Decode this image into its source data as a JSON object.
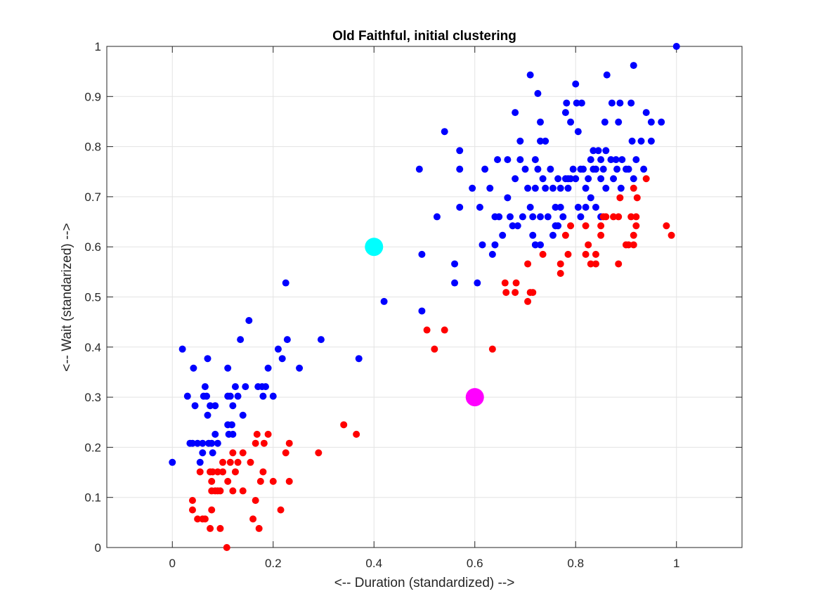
{
  "chart_data": {
    "type": "scatter",
    "title": "Old Faithful, initial clustering",
    "xlabel": "<-- Duration (standardized) -->",
    "ylabel": "<-- Wait (standarized) -->",
    "xlim": [
      -0.13,
      1.13
    ],
    "ylim": [
      0,
      1
    ],
    "xticks": [
      0,
      0.2,
      0.4,
      0.6,
      0.8,
      1
    ],
    "yticks": [
      0,
      0.1,
      0.2,
      0.3,
      0.4,
      0.5,
      0.6,
      0.7,
      0.8,
      0.9,
      1
    ],
    "xtick_labels": [
      "0",
      "0.2",
      "0.4",
      "0.6",
      "0.8",
      "1"
    ],
    "ytick_labels": [
      "0",
      "0.1",
      "0.2",
      "0.3",
      "0.4",
      "0.5",
      "0.6",
      "0.7",
      "0.8",
      "0.9",
      "1"
    ],
    "grid": true,
    "series": [
      {
        "color": "#0000ff",
        "points": [
          [
            0.0,
            0.17
          ],
          [
            0.02,
            0.396
          ],
          [
            0.03,
            0.302
          ],
          [
            0.035,
            0.208
          ],
          [
            0.04,
            0.208
          ],
          [
            0.042,
            0.358
          ],
          [
            0.045,
            0.283
          ],
          [
            0.05,
            0.208
          ],
          [
            0.055,
            0.17
          ],
          [
            0.06,
            0.189
          ],
          [
            0.06,
            0.208
          ],
          [
            0.062,
            0.302
          ],
          [
            0.065,
            0.321
          ],
          [
            0.068,
            0.302
          ],
          [
            0.07,
            0.377
          ],
          [
            0.07,
            0.264
          ],
          [
            0.072,
            0.208
          ],
          [
            0.075,
            0.283
          ],
          [
            0.078,
            0.208
          ],
          [
            0.08,
            0.189
          ],
          [
            0.085,
            0.283
          ],
          [
            0.085,
            0.226
          ],
          [
            0.09,
            0.208
          ],
          [
            0.11,
            0.245
          ],
          [
            0.11,
            0.302
          ],
          [
            0.11,
            0.358
          ],
          [
            0.112,
            0.226
          ],
          [
            0.115,
            0.302
          ],
          [
            0.118,
            0.245
          ],
          [
            0.12,
            0.226
          ],
          [
            0.12,
            0.283
          ],
          [
            0.125,
            0.321
          ],
          [
            0.13,
            0.302
          ],
          [
            0.135,
            0.415
          ],
          [
            0.14,
            0.264
          ],
          [
            0.145,
            0.321
          ],
          [
            0.152,
            0.453
          ],
          [
            0.17,
            0.321
          ],
          [
            0.178,
            0.321
          ],
          [
            0.18,
            0.302
          ],
          [
            0.185,
            0.321
          ],
          [
            0.19,
            0.358
          ],
          [
            0.2,
            0.302
          ],
          [
            0.21,
            0.396
          ],
          [
            0.218,
            0.377
          ],
          [
            0.225,
            0.528
          ],
          [
            0.228,
            0.415
          ],
          [
            0.252,
            0.358
          ],
          [
            0.295,
            0.415
          ],
          [
            0.37,
            0.377
          ],
          [
            0.42,
            0.491
          ],
          [
            0.49,
            0.755
          ],
          [
            0.495,
            0.585
          ],
          [
            0.495,
            0.472
          ],
          [
            0.525,
            0.66
          ],
          [
            0.54,
            0.83
          ],
          [
            0.56,
            0.566
          ],
          [
            0.56,
            0.528
          ],
          [
            0.57,
            0.792
          ],
          [
            0.57,
            0.755
          ],
          [
            0.57,
            0.679
          ],
          [
            0.595,
            0.717
          ],
          [
            0.605,
            0.528
          ],
          [
            0.61,
            0.679
          ],
          [
            0.615,
            0.604
          ],
          [
            0.62,
            0.755
          ],
          [
            0.63,
            0.717
          ],
          [
            0.635,
            0.585
          ],
          [
            0.64,
            0.604
          ],
          [
            0.64,
            0.66
          ],
          [
            0.645,
            0.774
          ],
          [
            0.648,
            0.66
          ],
          [
            0.655,
            0.623
          ],
          [
            0.665,
            0.774
          ],
          [
            0.665,
            0.698
          ],
          [
            0.67,
            0.66
          ],
          [
            0.675,
            0.642
          ],
          [
            0.68,
            0.868
          ],
          [
            0.68,
            0.736
          ],
          [
            0.685,
            0.642
          ],
          [
            0.69,
            0.811
          ],
          [
            0.69,
            0.774
          ],
          [
            0.695,
            0.66
          ],
          [
            0.7,
            0.755
          ],
          [
            0.705,
            0.717
          ],
          [
            0.71,
            0.943
          ],
          [
            0.71,
            0.679
          ],
          [
            0.715,
            0.66
          ],
          [
            0.715,
            0.623
          ],
          [
            0.72,
            0.717
          ],
          [
            0.72,
            0.604
          ],
          [
            0.72,
            0.774
          ],
          [
            0.725,
            0.906
          ],
          [
            0.725,
            0.755
          ],
          [
            0.73,
            0.849
          ],
          [
            0.73,
            0.811
          ],
          [
            0.73,
            0.66
          ],
          [
            0.73,
            0.604
          ],
          [
            0.735,
            0.736
          ],
          [
            0.74,
            0.811
          ],
          [
            0.74,
            0.717
          ],
          [
            0.745,
            0.66
          ],
          [
            0.75,
            0.755
          ],
          [
            0.755,
            0.717
          ],
          [
            0.755,
            0.623
          ],
          [
            0.76,
            0.679
          ],
          [
            0.76,
            0.642
          ],
          [
            0.765,
            0.736
          ],
          [
            0.765,
            0.642
          ],
          [
            0.77,
            0.717
          ],
          [
            0.77,
            0.679
          ],
          [
            0.775,
            0.66
          ],
          [
            0.78,
            0.868
          ],
          [
            0.78,
            0.736
          ],
          [
            0.782,
            0.887
          ],
          [
            0.785,
            0.717
          ],
          [
            0.785,
            0.736
          ],
          [
            0.79,
            0.849
          ],
          [
            0.79,
            0.736
          ],
          [
            0.795,
            0.755
          ],
          [
            0.8,
            0.925
          ],
          [
            0.8,
            0.736
          ],
          [
            0.802,
            0.887
          ],
          [
            0.805,
            0.83
          ],
          [
            0.805,
            0.679
          ],
          [
            0.81,
            0.755
          ],
          [
            0.81,
            0.66
          ],
          [
            0.812,
            0.887
          ],
          [
            0.815,
            0.755
          ],
          [
            0.82,
            0.717
          ],
          [
            0.82,
            0.679
          ],
          [
            0.825,
            0.736
          ],
          [
            0.83,
            0.774
          ],
          [
            0.83,
            0.698
          ],
          [
            0.835,
            0.755
          ],
          [
            0.835,
            0.792
          ],
          [
            0.84,
            0.755
          ],
          [
            0.84,
            0.679
          ],
          [
            0.845,
            0.792
          ],
          [
            0.85,
            0.774
          ],
          [
            0.85,
            0.736
          ],
          [
            0.85,
            0.66
          ],
          [
            0.855,
            0.755
          ],
          [
            0.858,
            0.849
          ],
          [
            0.86,
            0.792
          ],
          [
            0.86,
            0.717
          ],
          [
            0.862,
            0.943
          ],
          [
            0.87,
            0.774
          ],
          [
            0.872,
            0.887
          ],
          [
            0.875,
            0.736
          ],
          [
            0.88,
            0.774
          ],
          [
            0.882,
            0.755
          ],
          [
            0.885,
            0.849
          ],
          [
            0.888,
            0.887
          ],
          [
            0.89,
            0.717
          ],
          [
            0.892,
            0.774
          ],
          [
            0.9,
            0.755
          ],
          [
            0.905,
            0.755
          ],
          [
            0.91,
            0.887
          ],
          [
            0.912,
            0.811
          ],
          [
            0.915,
            0.736
          ],
          [
            0.915,
            0.962
          ],
          [
            0.92,
            0.774
          ],
          [
            0.93,
            0.811
          ],
          [
            0.935,
            0.755
          ],
          [
            0.94,
            0.868
          ],
          [
            0.95,
            0.849
          ],
          [
            0.95,
            0.811
          ],
          [
            0.97,
            0.849
          ],
          [
            1.0,
            1.0
          ]
        ]
      },
      {
        "color": "#ff0000",
        "points": [
          [
            0.04,
            0.094
          ],
          [
            0.04,
            0.075
          ],
          [
            0.05,
            0.057
          ],
          [
            0.055,
            0.151
          ],
          [
            0.06,
            0.057
          ],
          [
            0.065,
            0.057
          ],
          [
            0.075,
            0.038
          ],
          [
            0.075,
            0.151
          ],
          [
            0.078,
            0.132
          ],
          [
            0.078,
            0.113
          ],
          [
            0.078,
            0.075
          ],
          [
            0.08,
            0.151
          ],
          [
            0.085,
            0.113
          ],
          [
            0.09,
            0.113
          ],
          [
            0.09,
            0.151
          ],
          [
            0.095,
            0.038
          ],
          [
            0.095,
            0.113
          ],
          [
            0.1,
            0.17
          ],
          [
            0.1,
            0.151
          ],
          [
            0.108,
            0.0
          ],
          [
            0.11,
            0.132
          ],
          [
            0.115,
            0.17
          ],
          [
            0.12,
            0.189
          ],
          [
            0.12,
            0.113
          ],
          [
            0.125,
            0.151
          ],
          [
            0.13,
            0.17
          ],
          [
            0.14,
            0.113
          ],
          [
            0.14,
            0.189
          ],
          [
            0.155,
            0.17
          ],
          [
            0.16,
            0.057
          ],
          [
            0.165,
            0.094
          ],
          [
            0.165,
            0.208
          ],
          [
            0.168,
            0.226
          ],
          [
            0.172,
            0.038
          ],
          [
            0.175,
            0.132
          ],
          [
            0.18,
            0.151
          ],
          [
            0.182,
            0.208
          ],
          [
            0.19,
            0.226
          ],
          [
            0.2,
            0.132
          ],
          [
            0.215,
            0.075
          ],
          [
            0.225,
            0.189
          ],
          [
            0.232,
            0.208
          ],
          [
            0.232,
            0.132
          ],
          [
            0.29,
            0.189
          ],
          [
            0.34,
            0.245
          ],
          [
            0.365,
            0.226
          ],
          [
            0.505,
            0.434
          ],
          [
            0.52,
            0.396
          ],
          [
            0.54,
            0.434
          ],
          [
            0.635,
            0.396
          ],
          [
            0.66,
            0.528
          ],
          [
            0.662,
            0.509
          ],
          [
            0.68,
            0.509
          ],
          [
            0.682,
            0.528
          ],
          [
            0.705,
            0.491
          ],
          [
            0.705,
            0.566
          ],
          [
            0.71,
            0.509
          ],
          [
            0.715,
            0.509
          ],
          [
            0.735,
            0.585
          ],
          [
            0.77,
            0.547
          ],
          [
            0.77,
            0.566
          ],
          [
            0.78,
            0.623
          ],
          [
            0.785,
            0.585
          ],
          [
            0.79,
            0.642
          ],
          [
            0.82,
            0.642
          ],
          [
            0.82,
            0.585
          ],
          [
            0.825,
            0.604
          ],
          [
            0.83,
            0.566
          ],
          [
            0.84,
            0.566
          ],
          [
            0.84,
            0.585
          ],
          [
            0.85,
            0.642
          ],
          [
            0.85,
            0.623
          ],
          [
            0.855,
            0.66
          ],
          [
            0.86,
            0.66
          ],
          [
            0.875,
            0.66
          ],
          [
            0.885,
            0.66
          ],
          [
            0.885,
            0.566
          ],
          [
            0.888,
            0.698
          ],
          [
            0.9,
            0.604
          ],
          [
            0.905,
            0.604
          ],
          [
            0.91,
            0.66
          ],
          [
            0.915,
            0.717
          ],
          [
            0.915,
            0.623
          ],
          [
            0.915,
            0.604
          ],
          [
            0.92,
            0.642
          ],
          [
            0.92,
            0.66
          ],
          [
            0.922,
            0.698
          ],
          [
            0.94,
            0.736
          ],
          [
            0.98,
            0.642
          ],
          [
            0.99,
            0.623
          ]
        ]
      },
      {
        "color": "#00ffff",
        "points": [
          [
            0.4,
            0.6
          ]
        ]
      },
      {
        "color": "#ff00ff",
        "points": [
          [
            0.6,
            0.3
          ]
        ]
      }
    ]
  }
}
